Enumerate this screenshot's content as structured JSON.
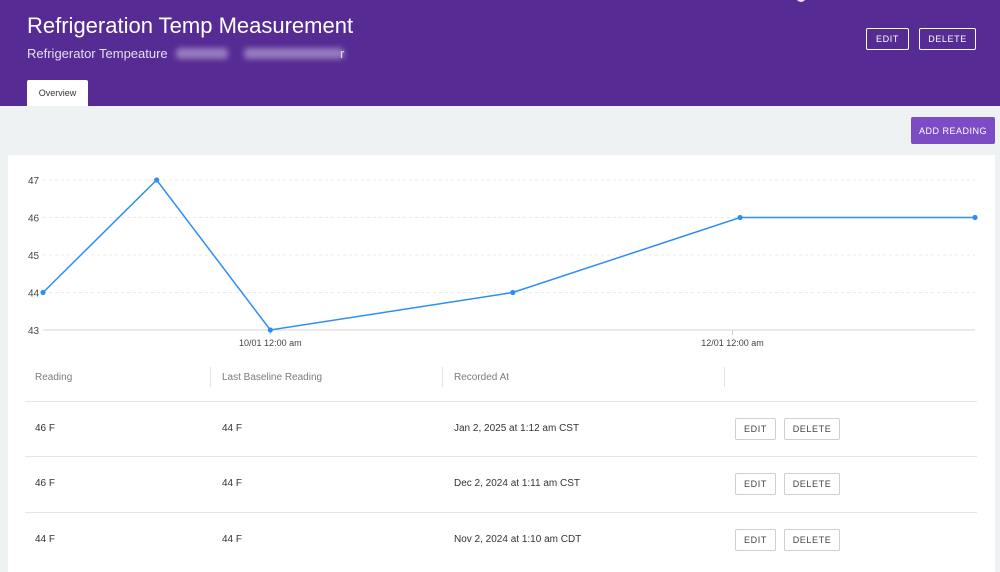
{
  "header": {
    "title": "Refrigeration Temp Measurement",
    "subtitle": "Refrigerator Tempeature",
    "subtitle_tail": "r",
    "edit_label": "EDIT",
    "delete_label": "DELETE",
    "background": "#572b94"
  },
  "tabs": [
    {
      "label": "Overview",
      "active": true
    }
  ],
  "toolbar": {
    "add_reading_label": "ADD READING",
    "accent": "#7b4cc4"
  },
  "chart_data": {
    "type": "line",
    "ylim": [
      43,
      47
    ],
    "yticks": [
      43,
      44,
      45,
      46,
      47
    ],
    "x": [
      "2024-09-01",
      "2024-09-16",
      "2024-10-01",
      "2024-11-02",
      "2024-12-02",
      "2025-01-02"
    ],
    "xticks": [
      "10/01 12:00 am",
      "12/01 12:00 am"
    ],
    "series": [
      {
        "values": [
          44,
          47,
          43,
          44,
          46,
          46
        ],
        "color": "#2b8ff3"
      }
    ],
    "grid": "horizontal-dashed",
    "legend": "none"
  },
  "table": {
    "columns": [
      "Reading",
      "Last Baseline Reading",
      "Recorded At",
      ""
    ],
    "rows": [
      {
        "reading": "46 F",
        "baseline": "44 F",
        "recorded_at": "Jan 2, 2025 at 1:12 am CST",
        "edit_label": "EDIT",
        "delete_label": "DELETE"
      },
      {
        "reading": "46 F",
        "baseline": "44 F",
        "recorded_at": "Dec 2, 2024 at 1:11 am CST",
        "edit_label": "EDIT",
        "delete_label": "DELETE"
      },
      {
        "reading": "44 F",
        "baseline": "44 F",
        "recorded_at": "Nov 2, 2024 at 1:10 am CDT",
        "edit_label": "EDIT",
        "delete_label": "DELETE"
      }
    ]
  }
}
